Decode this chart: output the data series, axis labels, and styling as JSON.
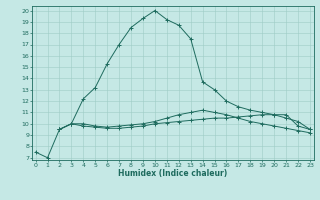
{
  "xlabel": "Humidex (Indice chaleur)",
  "bg_color": "#c5e8e5",
  "line_color": "#1e6b5e",
  "grid_color": "#9eccc6",
  "x_ticks": [
    0,
    1,
    2,
    3,
    4,
    5,
    6,
    7,
    8,
    9,
    10,
    11,
    12,
    13,
    14,
    15,
    16,
    17,
    18,
    19,
    20,
    21,
    22,
    23
  ],
  "y_ticks": [
    7,
    8,
    9,
    10,
    11,
    12,
    13,
    14,
    15,
    16,
    17,
    18,
    19,
    20
  ],
  "ylim": [
    6.8,
    20.4
  ],
  "xlim": [
    -0.3,
    23.3
  ],
  "line1_x": [
    0,
    1,
    2,
    3,
    4,
    5,
    6,
    7,
    8,
    9,
    10,
    11,
    12,
    13,
    14,
    15,
    16,
    17,
    18,
    19,
    20,
    21,
    22,
    23
  ],
  "line1_y": [
    7.5,
    7.0,
    9.5,
    10.0,
    9.8,
    9.7,
    9.6,
    9.6,
    9.7,
    9.8,
    10.0,
    10.1,
    10.2,
    10.3,
    10.4,
    10.5,
    10.5,
    10.6,
    10.7,
    10.8,
    10.8,
    10.8,
    9.8,
    9.5
  ],
  "line2_x": [
    2,
    3,
    4,
    5,
    6,
    7,
    8,
    9,
    10,
    11,
    12,
    13,
    14,
    15,
    16,
    17,
    18,
    19,
    20,
    21,
    22,
    23
  ],
  "line2_y": [
    9.5,
    10.0,
    10.0,
    9.8,
    9.7,
    9.8,
    9.9,
    10.0,
    10.2,
    10.5,
    10.8,
    11.0,
    11.2,
    11.0,
    10.8,
    10.5,
    10.2,
    10.0,
    9.8,
    9.6,
    9.4,
    9.2
  ],
  "line3_x": [
    2,
    3,
    4,
    5,
    6,
    7,
    8,
    9,
    10,
    11,
    12,
    13,
    14,
    15,
    16,
    17,
    18,
    19,
    20,
    21,
    22,
    23
  ],
  "line3_y": [
    9.5,
    10.0,
    12.2,
    13.2,
    15.3,
    17.0,
    18.5,
    19.3,
    20.0,
    19.2,
    18.7,
    17.5,
    13.7,
    13.0,
    12.0,
    11.5,
    11.2,
    11.0,
    10.8,
    10.5,
    10.2,
    9.5
  ]
}
